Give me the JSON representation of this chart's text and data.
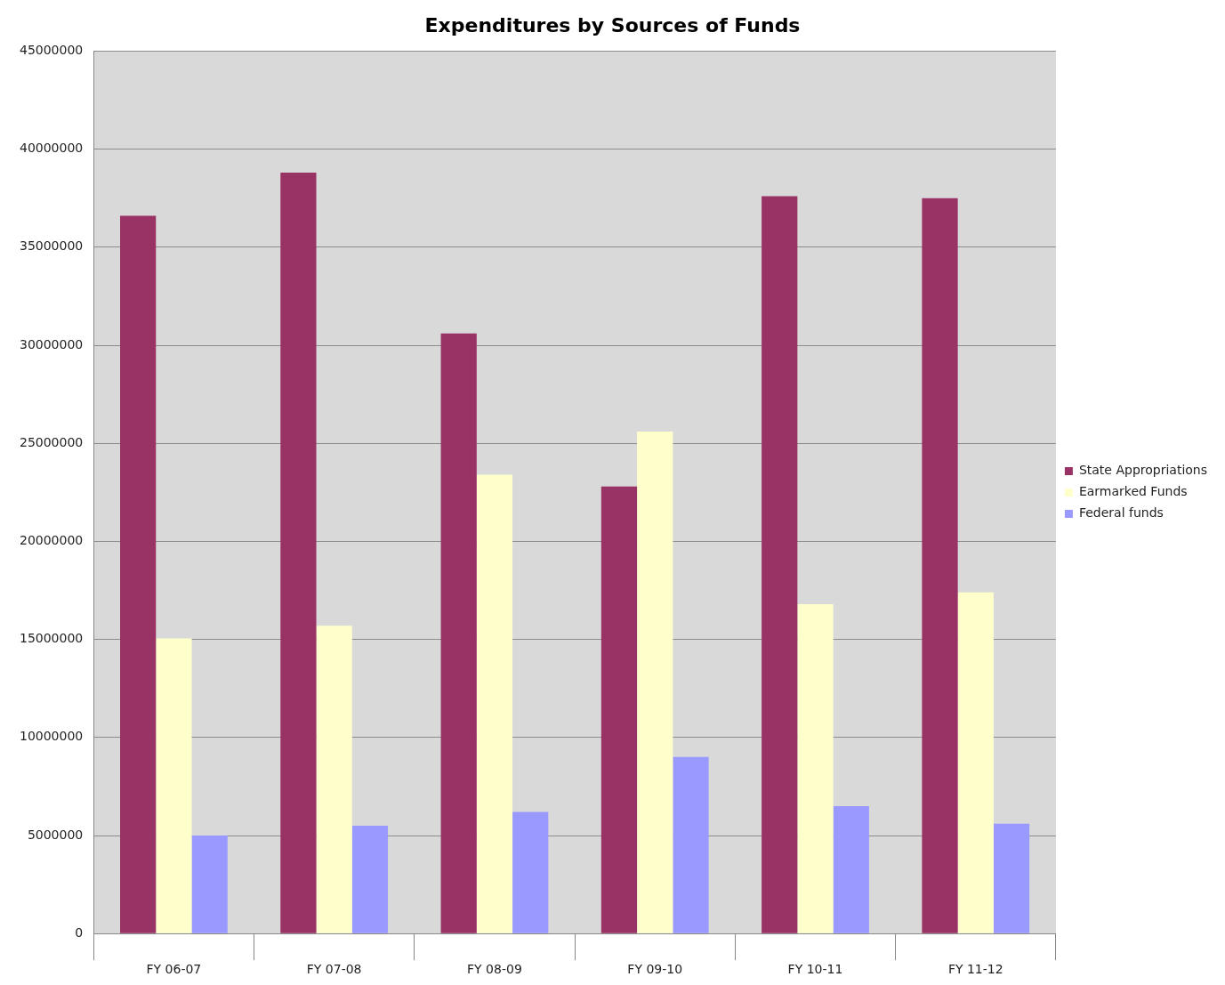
{
  "chart_data": {
    "type": "bar",
    "title": "Expenditures by Sources of Funds",
    "categories": [
      "FY 06-07",
      "FY 07-08",
      "FY 08-09",
      "FY 09-10",
      "FY 10-11",
      "FY 11-12"
    ],
    "series": [
      {
        "name": "State Appropriations",
        "color": "#993366",
        "values": [
          36600000,
          38800000,
          30600000,
          22800000,
          37600000,
          37500000
        ]
      },
      {
        "name": "Earmarked Funds",
        "color": "#ffffcc",
        "values": [
          15050000,
          15700000,
          23400000,
          25600000,
          16800000,
          17400000
        ]
      },
      {
        "name": "Federal funds",
        "color": "#9999ff",
        "values": [
          5000000,
          5500000,
          6200000,
          9000000,
          6500000,
          5600000
        ]
      }
    ],
    "ylim": [
      0,
      45000000
    ],
    "yticks": [
      0,
      5000000,
      10000000,
      15000000,
      20000000,
      25000000,
      30000000,
      35000000,
      40000000,
      45000000
    ],
    "grid": "y",
    "legend": "right"
  }
}
